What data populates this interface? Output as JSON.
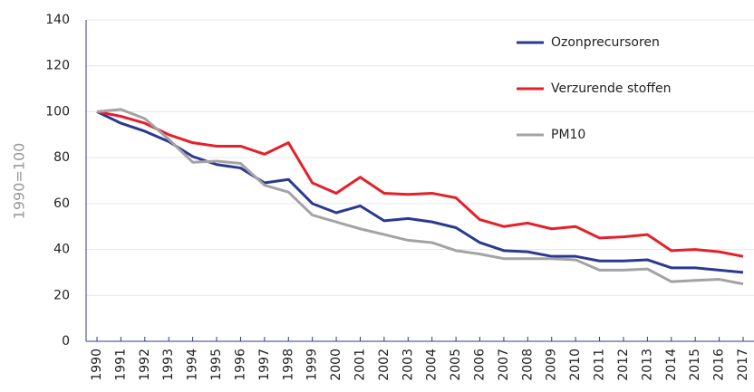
{
  "chart_data": {
    "type": "line",
    "y_label": "1990=100",
    "categories": [
      "1990",
      "1991",
      "1992",
      "1993",
      "1994",
      "1995",
      "1996",
      "1997",
      "1998",
      "1999",
      "2000",
      "2001",
      "2002",
      "2003",
      "2004",
      "2005",
      "2006",
      "2007",
      "2008",
      "2009",
      "2010",
      "2011",
      "2012",
      "2013",
      "2014",
      "2015",
      "2016",
      "2017"
    ],
    "series": [
      {
        "name": "Ozonprecursoren",
        "color": "#2b3990",
        "values": [
          100,
          95,
          91.5,
          87,
          80.5,
          77,
          75.5,
          69,
          70.5,
          60,
          56,
          59,
          52.5,
          53.5,
          52,
          49.5,
          43,
          39.5,
          39,
          37,
          37,
          35,
          35,
          35.5,
          32,
          32,
          31,
          30
        ]
      },
      {
        "name": "Verzurende stoffen",
        "color": "#e4202a",
        "values": [
          100,
          98,
          95,
          90,
          86.5,
          85,
          85,
          81.5,
          86.5,
          69,
          64.5,
          71.5,
          64.5,
          64,
          64.5,
          62.5,
          53,
          50,
          51.5,
          49,
          50,
          45,
          45.5,
          46.5,
          39.5,
          40,
          39,
          37
        ]
      },
      {
        "name": "PM10",
        "color": "#a3a3a3",
        "values": [
          100,
          101,
          97,
          88,
          78,
          78.5,
          77.5,
          68,
          65,
          55,
          52,
          49,
          46.5,
          44,
          43,
          39.5,
          38,
          36,
          36,
          36,
          35.5,
          31,
          31,
          31.5,
          26,
          26.5,
          27,
          25
        ]
      }
    ],
    "ylim": [
      0,
      140
    ],
    "yticks": [
      0,
      20,
      40,
      60,
      80,
      100,
      120,
      140
    ],
    "grid": true,
    "legend": "top-right"
  }
}
